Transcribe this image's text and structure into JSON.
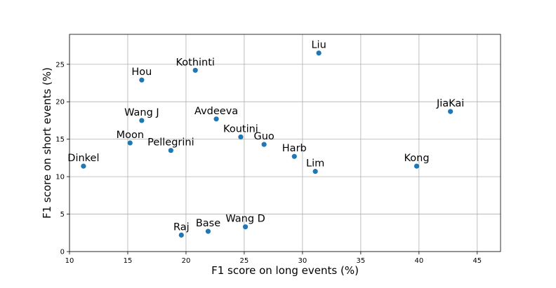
{
  "chart_data": {
    "type": "scatter",
    "title": "",
    "xlabel": "F1 score on long events (%)",
    "ylabel": "F1 score on short events (%)",
    "xlim": [
      10,
      47
    ],
    "ylim": [
      0,
      29
    ],
    "xticks": [
      10,
      15,
      20,
      25,
      30,
      35,
      40,
      45
    ],
    "yticks": [
      0,
      5,
      10,
      15,
      20,
      25
    ],
    "grid": true,
    "marker_color": "#1f77b4",
    "points": [
      {
        "label": "Liu",
        "x": 31.4,
        "y": 26.5
      },
      {
        "label": "Kothinti",
        "x": 20.8,
        "y": 24.2
      },
      {
        "label": "Hou",
        "x": 16.2,
        "y": 22.9
      },
      {
        "label": "JiaKai",
        "x": 42.7,
        "y": 18.7
      },
      {
        "label": "Avdeeva",
        "x": 22.6,
        "y": 17.7
      },
      {
        "label": "Wang J",
        "x": 16.2,
        "y": 17.5
      },
      {
        "label": "Koutini",
        "x": 24.7,
        "y": 15.3
      },
      {
        "label": "Moon",
        "x": 15.2,
        "y": 14.5
      },
      {
        "label": "Guo",
        "x": 26.7,
        "y": 14.3
      },
      {
        "label": "Pellegrini",
        "x": 18.7,
        "y": 13.5
      },
      {
        "label": "Harb",
        "x": 29.3,
        "y": 12.7
      },
      {
        "label": "Dinkel",
        "x": 11.2,
        "y": 11.4
      },
      {
        "label": "Kong",
        "x": 39.8,
        "y": 11.4
      },
      {
        "label": "Lim",
        "x": 31.1,
        "y": 10.7
      },
      {
        "label": "Wang D",
        "x": 25.1,
        "y": 3.3
      },
      {
        "label": "Base",
        "x": 21.9,
        "y": 2.7
      },
      {
        "label": "Raj",
        "x": 19.6,
        "y": 2.2
      }
    ]
  }
}
